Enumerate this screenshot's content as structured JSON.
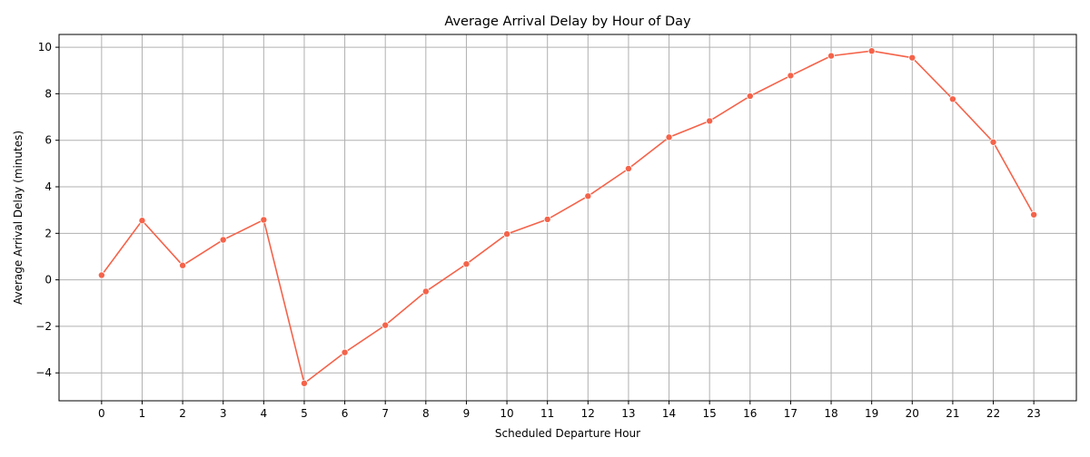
{
  "chart_data": {
    "type": "line",
    "title": "Average Arrival Delay by Hour of Day",
    "xlabel": "Scheduled Departure Hour",
    "ylabel": "Average Arrival Delay (minutes)",
    "x": [
      0,
      1,
      2,
      3,
      4,
      5,
      6,
      7,
      8,
      9,
      10,
      11,
      12,
      13,
      14,
      15,
      16,
      17,
      18,
      19,
      20,
      21,
      22,
      23
    ],
    "x_tick_labels": [
      "0",
      "1",
      "2",
      "3",
      "4",
      "5",
      "6",
      "7",
      "8",
      "9",
      "10",
      "11",
      "12",
      "13",
      "14",
      "15",
      "16",
      "17",
      "18",
      "19",
      "20",
      "21",
      "22",
      "23"
    ],
    "xlim": [
      -1.05,
      24.05
    ],
    "ylim": [
      -5.2,
      10.55
    ],
    "y_ticks": [
      -4,
      -2,
      0,
      2,
      4,
      6,
      8,
      10
    ],
    "y_tick_labels": [
      "−4",
      "−2",
      "0",
      "2",
      "4",
      "6",
      "8",
      "10"
    ],
    "grid": true,
    "series": [
      {
        "values": [
          0.2,
          2.55,
          0.62,
          1.72,
          2.58,
          -4.45,
          -3.12,
          -1.95,
          -0.5,
          0.68,
          1.97,
          2.6,
          3.6,
          4.78,
          6.13,
          6.83,
          7.9,
          8.78,
          9.63,
          9.84,
          9.55,
          7.77,
          5.92,
          2.8
        ],
        "color": "#f4634a",
        "marker": "circle"
      }
    ]
  }
}
